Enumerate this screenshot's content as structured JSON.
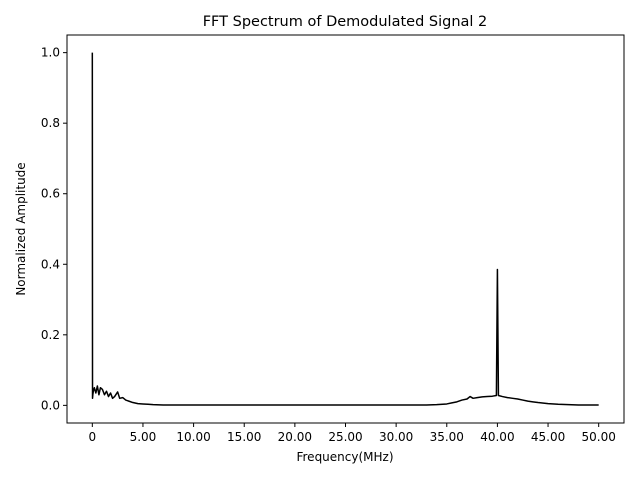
{
  "chart_data": {
    "type": "line",
    "title": "FFT Spectrum of Demodulated Signal 2",
    "xlabel": "Frequency(MHz)",
    "ylabel": "Normalized Amplitude",
    "xlim": [
      -2.5,
      52.5
    ],
    "ylim": [
      -0.05,
      1.05
    ],
    "x_ticks": [
      0,
      5,
      10,
      15,
      20,
      25,
      30,
      35,
      40,
      45,
      50
    ],
    "x_tick_labels": [
      "0",
      "5.00",
      "10.00",
      "15.00",
      "20.00",
      "25.00",
      "30.00",
      "35.00",
      "40.00",
      "45.00",
      "50.00"
    ],
    "y_ticks": [
      0.0,
      0.2,
      0.4,
      0.6,
      0.8,
      1.0
    ],
    "y_tick_labels": [
      "0.0",
      "0.2",
      "0.4",
      "0.6",
      "0.8",
      "1.0"
    ],
    "grid": false,
    "line_color": "#000000",
    "series": [
      {
        "x": [
          0,
          0.02,
          0.05,
          0.1,
          0.2,
          0.35,
          0.5,
          0.65,
          0.8,
          1.0,
          1.2,
          1.4,
          1.6,
          1.8,
          2.0,
          2.2,
          2.5,
          2.7,
          3.0,
          3.3,
          3.6,
          4.0,
          4.5,
          5.0,
          5.5,
          6.0,
          7.0,
          10.0,
          15.0,
          20.0,
          25.0,
          30.0,
          33.0,
          34.0,
          35.0,
          35.5,
          36.0,
          36.5,
          37.0,
          37.3,
          37.6,
          38.0,
          38.5,
          39.0,
          39.5,
          39.9,
          40.0,
          40.1,
          40.5,
          41.0,
          41.5,
          42.0,
          42.5,
          43.0,
          43.5,
          44.0,
          45.0,
          46.0,
          47.0,
          48.0,
          50.0
        ],
        "y": [
          1.0,
          0.02,
          0.03,
          0.04,
          0.05,
          0.035,
          0.055,
          0.03,
          0.05,
          0.045,
          0.03,
          0.04,
          0.025,
          0.035,
          0.02,
          0.025,
          0.038,
          0.02,
          0.022,
          0.015,
          0.012,
          0.008,
          0.005,
          0.004,
          0.003,
          0.002,
          0.001,
          0.001,
          0.001,
          0.001,
          0.001,
          0.001,
          0.001,
          0.002,
          0.004,
          0.007,
          0.01,
          0.015,
          0.018,
          0.025,
          0.02,
          0.022,
          0.024,
          0.025,
          0.026,
          0.028,
          0.385,
          0.028,
          0.025,
          0.022,
          0.02,
          0.018,
          0.015,
          0.012,
          0.01,
          0.008,
          0.005,
          0.003,
          0.002,
          0.001,
          0.001
        ]
      }
    ]
  }
}
